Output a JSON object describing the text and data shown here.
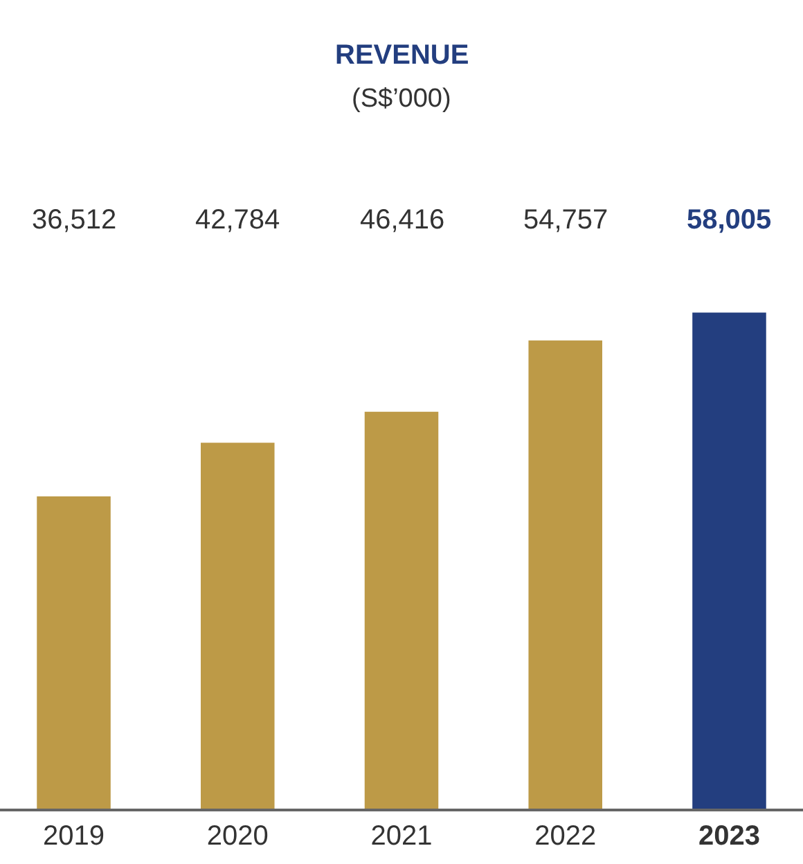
{
  "chart_data": {
    "type": "bar",
    "title": "REVENUE",
    "subtitle": "(S$’000)",
    "categories": [
      "2019",
      "2020",
      "2021",
      "2022",
      "2023"
    ],
    "values": [
      36512,
      42784,
      46416,
      54757,
      58005
    ],
    "colors": [
      "#bd9a47",
      "#bd9a47",
      "#bd9a47",
      "#bd9a47",
      "#233e7f"
    ],
    "value_labels": [
      "36,512",
      "42,784",
      "46,416",
      "54,757",
      "58,005"
    ]
  }
}
